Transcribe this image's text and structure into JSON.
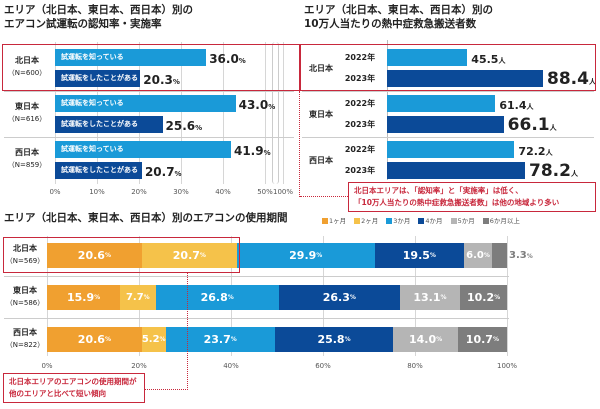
{
  "chart_data": [
    {
      "type": "bar",
      "orientation": "horizontal",
      "title": "エリア（北日本、東日本、西日本）別の\nエアコン試運転の認知率・実施率",
      "title_lines": [
        "エリア（北日本、東日本、西日本）別の",
        "エアコン試運転の認知率・実施率"
      ],
      "categories": [
        {
          "name": "北日本",
          "n": "（N=600）"
        },
        {
          "name": "東日本",
          "n": "（N=616）"
        },
        {
          "name": "西日本",
          "n": "（N=859）"
        }
      ],
      "series": [
        {
          "name": "試運転を知っている",
          "values": [
            36.0,
            43.0,
            41.9
          ],
          "color": "#1a9ad8"
        },
        {
          "name": "試運転をしたことがある",
          "values": [
            20.3,
            25.6,
            20.7
          ],
          "color": "#0b4a98"
        }
      ],
      "unit": "%",
      "xlim": [
        0,
        100
      ],
      "axis_break": "50%-100%",
      "xticks": [
        "0%",
        "10%",
        "20%",
        "30%",
        "40%",
        "50%",
        "100%"
      ],
      "grid": true
    },
    {
      "type": "bar",
      "orientation": "horizontal",
      "title_lines": [
        "エリア（北日本、東日本、西日本）別の",
        "10万人当たりの熱中症救急搬送者数"
      ],
      "categories": [
        "北日本",
        "東日本",
        "西日本"
      ],
      "series": [
        {
          "name": "2022年",
          "values": [
            45.5,
            61.4,
            72.2
          ],
          "color": "#1a9ad8"
        },
        {
          "name": "2023年",
          "values": [
            88.4,
            66.1,
            78.2
          ],
          "color": "#0b4a98"
        }
      ],
      "unit": "人"
    },
    {
      "type": "bar",
      "stacked": true,
      "orientation": "horizontal",
      "title_lines": [
        "エリア（北日本、東日本、西日本）別のエアコンの使用期間"
      ],
      "categories": [
        {
          "name": "北日本",
          "n": "（N=569）"
        },
        {
          "name": "東日本",
          "n": "（N=586）"
        },
        {
          "name": "西日本",
          "n": "（N=822）"
        }
      ],
      "series": [
        {
          "name": "1ヶ月",
          "values": [
            20.6,
            15.9,
            20.6
          ],
          "color": "#f0a030"
        },
        {
          "name": "2ヶ月",
          "values": [
            20.7,
            7.7,
            5.2
          ],
          "color": "#f5c24a"
        },
        {
          "name": "3か月",
          "values": [
            29.9,
            26.8,
            23.7
          ],
          "color": "#1a9ad8"
        },
        {
          "name": "4か月",
          "values": [
            19.5,
            26.3,
            25.8
          ],
          "color": "#0b4a98"
        },
        {
          "name": "5か月",
          "values": [
            6.0,
            13.1,
            14.0
          ],
          "color": "#b5b5b5"
        },
        {
          "name": "6か月以上",
          "values": [
            3.3,
            10.2,
            10.7
          ],
          "color": "#7d7d7d"
        }
      ],
      "unit": "%",
      "xlim": [
        0,
        100
      ],
      "xticks": [
        "0%",
        "20%",
        "40%",
        "60%",
        "80%",
        "100%"
      ],
      "legend": "top-right",
      "grid": true
    }
  ],
  "notes": {
    "top": [
      "北日本エリアは、「認知率」と「実施率」は低く、",
      "「10万人当たりの熱中症救急搬送者数」は他の地域より多い"
    ],
    "bottom": [
      "北日本エリアのエアコンの使用期間が",
      "他のエリアと比べて短い傾向"
    ]
  },
  "colors": {
    "highlight": "#c8283c"
  }
}
